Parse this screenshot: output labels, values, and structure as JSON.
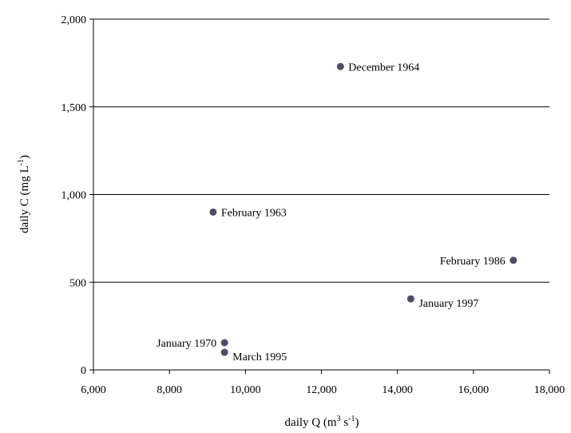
{
  "chart_data": {
    "type": "scatter",
    "title": "",
    "xlabel": {
      "pre": "daily Q (m",
      "sup1": "3",
      "mid": " s",
      "sup2": "-1",
      "post": ")"
    },
    "ylabel": {
      "pre": "daily C (mg L",
      "sup1": "-1",
      "post": ")"
    },
    "xlim": [
      6000,
      18000
    ],
    "ylim": [
      0,
      2000
    ],
    "xticks": [
      6000,
      8000,
      10000,
      12000,
      14000,
      16000,
      18000
    ],
    "xtick_labels": [
      "6,000",
      "8,000",
      "10,000",
      "12,000",
      "14,000",
      "16,000",
      "18,000"
    ],
    "yticks": [
      0,
      500,
      1000,
      1500,
      2000
    ],
    "ytick_labels": [
      "0",
      "500",
      "1,000",
      "1,500",
      "2,000"
    ],
    "grid": "horizontal",
    "marker_color": "#4d4d66",
    "points": [
      {
        "x": 12500,
        "y": 1730,
        "label": "December 1964",
        "label_pos": "right"
      },
      {
        "x": 9150,
        "y": 900,
        "label": "February 1963",
        "label_pos": "right"
      },
      {
        "x": 17050,
        "y": 625,
        "label": "February 1986",
        "label_pos": "left"
      },
      {
        "x": 14350,
        "y": 405,
        "label": "January 1997",
        "label_pos": "right-below"
      },
      {
        "x": 9450,
        "y": 155,
        "label": "January 1970",
        "label_pos": "left"
      },
      {
        "x": 9450,
        "y": 100,
        "label": "March 1995",
        "label_pos": "right-below"
      }
    ]
  }
}
